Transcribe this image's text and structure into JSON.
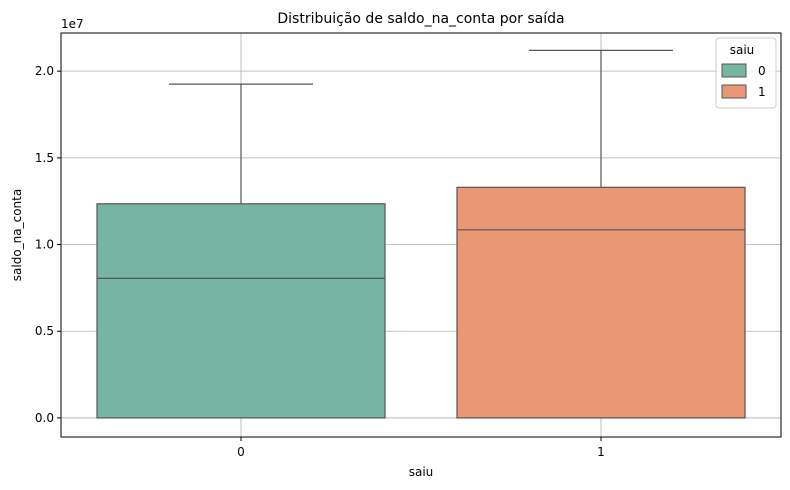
{
  "chart_data": {
    "type": "box",
    "title": "Distribuição de saldo_na_conta por saída",
    "xlabel": "saiu",
    "ylabel": "saldo_na_conta",
    "y_offset_label": "1e7",
    "categories": [
      "0",
      "1"
    ],
    "ylim": [
      -1.1,
      22.2
    ],
    "y_ticks": [
      0,
      5,
      10,
      15,
      20
    ],
    "y_tick_labels": [
      "0.0",
      "0.5",
      "1.0",
      "1.5",
      "2.0"
    ],
    "grid": true,
    "legend": {
      "title": "saiu",
      "placement": "top-right",
      "entries": [
        "0",
        "1"
      ]
    },
    "series": [
      {
        "category": "0",
        "color": "#76b5a1",
        "whisker_low": 0,
        "q1": 0,
        "median": 8.05,
        "q3": 12.35,
        "whisker_high": 19.25
      },
      {
        "category": "1",
        "color": "#ea9775",
        "whisker_low": 0,
        "q1": 0,
        "median": 10.85,
        "q3": 13.3,
        "whisker_high": 21.2
      }
    ]
  }
}
